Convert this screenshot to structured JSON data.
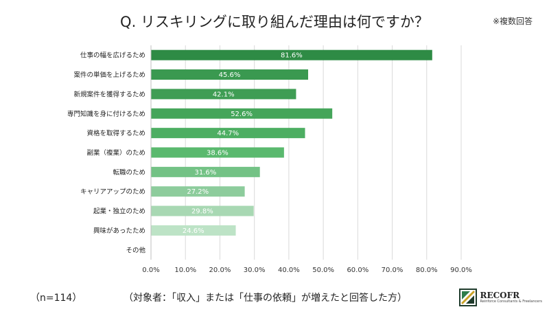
{
  "title": "Q. リスキリングに取り組んだ理由は何ですか？",
  "note": "※複数回答",
  "sample_size": "（n=114）",
  "condition": "（対象者：「収入」または「仕事の依頼」が増えたと回答した方）",
  "logo": {
    "name": "RECOFR",
    "tagline": "Reinforce Consultants & Freelancers",
    "icon": "recofr-logo-mark"
  },
  "chart_data": {
    "type": "bar",
    "orientation": "horizontal",
    "categories": [
      "仕事の幅を広げるため",
      "案件の単価を上げるため",
      "新規案件を獲得するため",
      "専門知識を身に付けるため",
      "資格を取得するため",
      "副業（複業）のため",
      "転職のため",
      "キャリアアップのため",
      "起業・独立のため",
      "興味があったため",
      "その他"
    ],
    "values": [
      81.6,
      45.6,
      42.1,
      52.6,
      44.7,
      38.6,
      31.6,
      27.2,
      29.8,
      24.6,
      0
    ],
    "value_labels": [
      "81.6%",
      "45.6%",
      "42.1%",
      "52.6%",
      "44.7%",
      "38.6%",
      "31.6%",
      "27.2%",
      "29.8%",
      "24.6%",
      ""
    ],
    "colors": [
      "#2e8b45",
      "#3a9950",
      "#3f9d54",
      "#45a55a",
      "#4dae62",
      "#5ab96e",
      "#73c285",
      "#8dcc9c",
      "#a8d8b3",
      "#bde3c6",
      "#d3edd9"
    ],
    "xlim": [
      0,
      90
    ],
    "xticks": [
      0,
      10,
      20,
      30,
      40,
      50,
      60,
      70,
      80,
      90
    ],
    "xtick_labels": [
      "0.0%",
      "10.0%",
      "20.0%",
      "30.0%",
      "40.0%",
      "50.0%",
      "60.0%",
      "70.0%",
      "80.0%",
      "90.0%"
    ],
    "grid": true,
    "gridColor": "#d9d9d9"
  }
}
